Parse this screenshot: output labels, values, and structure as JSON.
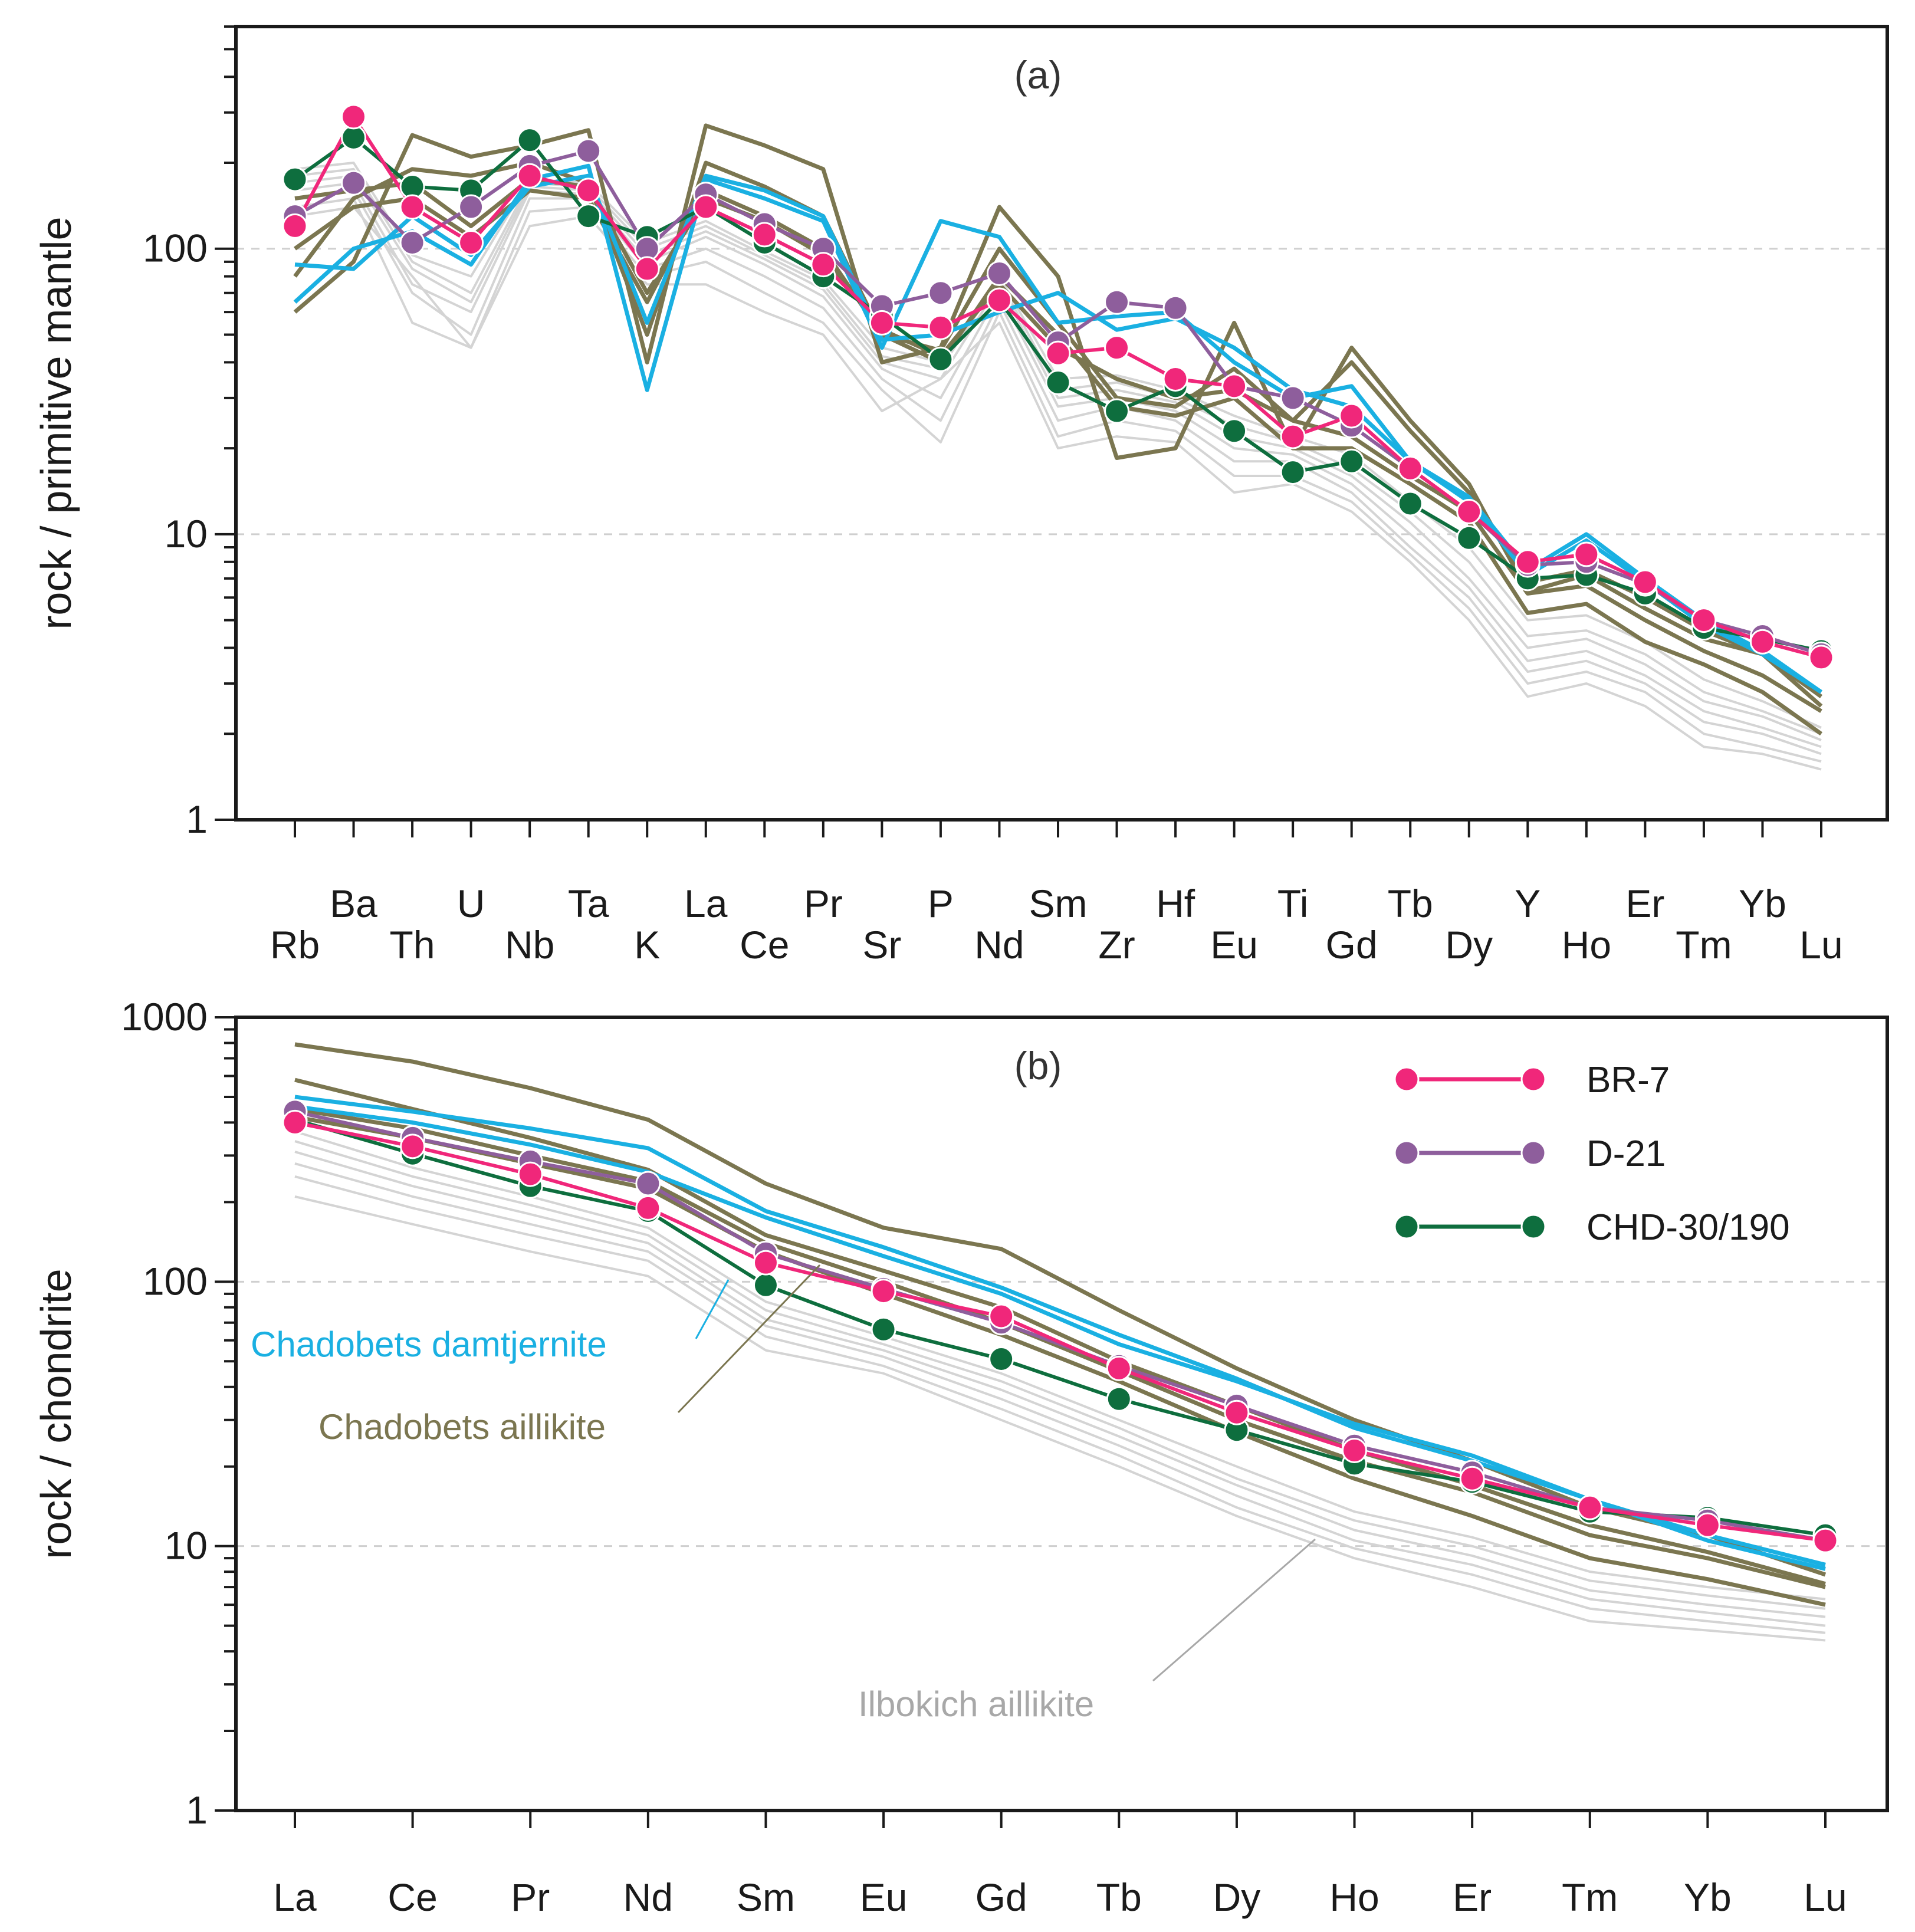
{
  "colors": {
    "br7": "#f0277a",
    "d21": "#8e5e9c",
    "chd": "#0e6e3e",
    "damtjernite": "#1ab0e2",
    "aillikite": "#7b7650",
    "ilbokich": "#d4d4d4",
    "grid": "#cfcfcf",
    "frame": "#1a1a1a"
  },
  "chart_data": [
    {
      "type": "line",
      "panel_label": "(a)",
      "ylabel": "rock / primitive mantle",
      "yscale": "log",
      "ylim": [
        1,
        600
      ],
      "yticks": [
        "1",
        "10",
        "100"
      ],
      "categories": [
        "Rb",
        "Ba",
        "Th",
        "U",
        "Nb",
        "Ta",
        "K",
        "La",
        "Ce",
        "Pr",
        "Sr",
        "P",
        "Nd",
        "Sm",
        "Zr",
        "Hf",
        "Eu",
        "Ti",
        "Gd",
        "Tb",
        "Dy",
        "Y",
        "Ho",
        "Er",
        "Tm",
        "Yb",
        "Lu"
      ],
      "series": [
        {
          "name": "BR-7",
          "group": "br7",
          "markers": true,
          "values": [
            120,
            290,
            140,
            105,
            180,
            160,
            85,
            140,
            112,
            88,
            55,
            53,
            66,
            43,
            45,
            35,
            33,
            22,
            26,
            17,
            12,
            8,
            8.5,
            6.8,
            5,
            4.2,
            3.7
          ]
        },
        {
          "name": "D-21",
          "group": "d21",
          "markers": true,
          "values": [
            130,
            170,
            105,
            140,
            195,
            220,
            100,
            155,
            122,
            100,
            63,
            70,
            82,
            47,
            65,
            62,
            33,
            30,
            24,
            17,
            12,
            7.8,
            8,
            6.7,
            5,
            4.4,
            3.8
          ]
        },
        {
          "name": "CHD-30/190",
          "group": "chd",
          "markers": true,
          "values": [
            175,
            245,
            165,
            160,
            240,
            130,
            110,
            140,
            105,
            80,
            58,
            41,
            66,
            34,
            27,
            33,
            23,
            16.5,
            18,
            12.8,
            9.7,
            7,
            7.2,
            6.2,
            4.7,
            4.3,
            3.9
          ]
        },
        {
          "name": "Chadobets damtjernite 1",
          "group": "damtjernite",
          "markers": false,
          "values": [
            65,
            100,
            115,
            88,
            175,
            195,
            32,
            175,
            150,
            125,
            45,
            125,
            110,
            55,
            58,
            60,
            40,
            30,
            33,
            18,
            13,
            7.2,
            9.5,
            6.8,
            4.8,
            3.8,
            2.8
          ]
        },
        {
          "name": "Chadobets damtjernite 2",
          "group": "damtjernite",
          "markers": false,
          "values": [
            88,
            85,
            130,
            95,
            165,
            180,
            55,
            180,
            160,
            130,
            48,
            50,
            60,
            70,
            52,
            57,
            45,
            32,
            28,
            18,
            13.5,
            7.5,
            10,
            7,
            5,
            3.9,
            2.8
          ]
        },
        {
          "name": "Chadobets aillikite 1",
          "group": "aillikite",
          "markers": false,
          "values": [
            60,
            90,
            250,
            210,
            230,
            260,
            40,
            270,
            230,
            190,
            40,
            45,
            140,
            80,
            18.5,
            20,
            55,
            20,
            45,
            25,
            15,
            6.3,
            7.2,
            5.5,
            4.3,
            3.8,
            2.7
          ]
        },
        {
          "name": "Chadobets aillikite 2",
          "group": "aillikite",
          "markers": false,
          "values": [
            80,
            150,
            190,
            180,
            200,
            170,
            50,
            200,
            165,
            130,
            50,
            44,
            100,
            55,
            30,
            28,
            38,
            25,
            40,
            23,
            14,
            6.8,
            7.5,
            6,
            4.6,
            3.8,
            2.5
          ]
        },
        {
          "name": "Chadobets aillikite 3",
          "group": "aillikite",
          "markers": false,
          "values": [
            100,
            140,
            150,
            110,
            160,
            150,
            65,
            160,
            130,
            100,
            50,
            40,
            80,
            50,
            28,
            26,
            30,
            20,
            20,
            15,
            11,
            5.3,
            5.7,
            4.2,
            3.5,
            2.8,
            2
          ]
        },
        {
          "name": "Chadobets aillikite 4",
          "group": "aillikite",
          "markers": false,
          "values": [
            150,
            160,
            170,
            120,
            175,
            165,
            70,
            150,
            125,
            95,
            52,
            42,
            75,
            45,
            35,
            30,
            32,
            25,
            22,
            16,
            12,
            6.2,
            6.6,
            5,
            3.9,
            3.2,
            2.4
          ]
        },
        {
          "name": "Ilbokich aillikite 1",
          "group": "ilbokich",
          "markers": false,
          "values": [
            130,
            140,
            80,
            45,
            120,
            130,
            75,
            75,
            60,
            50,
            27,
            35,
            55,
            20,
            22,
            21,
            14,
            15,
            12,
            8,
            5,
            2.7,
            3,
            2.5,
            1.8,
            1.7,
            1.5
          ]
        },
        {
          "name": "Ilbokich aillikite 2",
          "group": "ilbokich",
          "markers": false,
          "values": [
            140,
            150,
            55,
            45,
            135,
            140,
            80,
            90,
            70,
            55,
            32,
            21,
            60,
            22,
            25,
            23,
            16,
            16,
            13,
            8.5,
            5.5,
            3,
            3.3,
            2.8,
            2,
            1.8,
            1.6
          ]
        },
        {
          "name": "Ilbokich aillikite 3",
          "group": "ilbokich",
          "markers": false,
          "values": [
            150,
            160,
            70,
            50,
            150,
            150,
            85,
            100,
            80,
            62,
            35,
            25,
            65,
            25,
            28,
            25,
            18,
            18,
            14,
            9,
            6,
            3.3,
            3.6,
            3,
            2.2,
            2,
            1.7
          ]
        },
        {
          "name": "Ilbokich aillikite 4",
          "group": "ilbokich",
          "markers": false,
          "values": [
            160,
            170,
            75,
            60,
            160,
            155,
            90,
            110,
            88,
            68,
            38,
            30,
            70,
            28,
            30,
            27,
            20,
            19,
            15,
            10,
            6.5,
            3.6,
            3.9,
            3.2,
            2.4,
            2.1,
            1.8
          ]
        },
        {
          "name": "Ilbokich aillikite 5",
          "group": "ilbokich",
          "markers": false,
          "values": [
            170,
            180,
            85,
            65,
            165,
            160,
            95,
            115,
            92,
            72,
            40,
            35,
            75,
            30,
            32,
            29,
            22,
            20,
            16,
            11,
            7,
            4,
            4.3,
            3.5,
            2.6,
            2.3,
            1.9
          ]
        },
        {
          "name": "Ilbokich aillikite 6",
          "group": "ilbokich",
          "markers": false,
          "values": [
            180,
            190,
            90,
            70,
            170,
            165,
            100,
            120,
            95,
            75,
            42,
            38,
            78,
            32,
            34,
            30,
            24,
            21,
            17,
            12,
            8,
            4.4,
            4.6,
            3.8,
            2.8,
            2.4,
            2
          ]
        },
        {
          "name": "Ilbokich aillikite 7",
          "group": "ilbokich",
          "markers": false,
          "values": [
            190,
            200,
            95,
            80,
            175,
            170,
            105,
            125,
            98,
            78,
            45,
            40,
            80,
            35,
            36,
            32,
            26,
            22,
            19,
            13,
            9,
            5,
            5.2,
            4.2,
            3.1,
            2.6,
            2.1
          ]
        }
      ]
    },
    {
      "type": "line",
      "panel_label": "(b)",
      "ylabel": "rock / chondrite",
      "yscale": "log",
      "ylim": [
        1,
        1000
      ],
      "yticks": [
        "1",
        "10",
        "100",
        "1000"
      ],
      "categories": [
        "La",
        "Ce",
        "Pr",
        "Nd",
        "Sm",
        "Eu",
        "Gd",
        "Tb",
        "Dy",
        "Ho",
        "Er",
        "Tm",
        "Yb",
        "Lu"
      ],
      "legend": [
        {
          "name": "BR-7",
          "group": "br7"
        },
        {
          "name": "D-21",
          "group": "d21"
        },
        {
          "name": "CHD-30/190",
          "group": "chd"
        }
      ],
      "annotations": [
        {
          "text": "Chadobets damtjernite",
          "group": "damtjernite"
        },
        {
          "text": "Chadobets aillikite",
          "group": "aillikite"
        },
        {
          "text": "Ilbokich aillikite",
          "group": "ilbokich"
        }
      ],
      "series": [
        {
          "name": "BR-7",
          "group": "br7",
          "markers": true,
          "values": [
            400,
            325,
            255,
            190,
            118,
            92,
            74,
            47,
            32,
            23,
            18,
            14,
            12,
            10.5
          ]
        },
        {
          "name": "D-21",
          "group": "d21",
          "markers": true,
          "values": [
            440,
            350,
            285,
            235,
            128,
            94,
            70,
            48,
            34,
            24,
            19,
            14,
            12.5,
            10.5
          ]
        },
        {
          "name": "CHD-30/190",
          "group": "chd",
          "markers": true,
          "values": [
            410,
            305,
            230,
            185,
            97,
            66,
            51,
            36,
            27.5,
            20.5,
            17.5,
            13.5,
            12.8,
            11
          ]
        },
        {
          "name": "Chadobets damtjernite 1",
          "group": "damtjernite",
          "markers": false,
          "values": [
            500,
            440,
            380,
            320,
            185,
            135,
            95,
            63,
            43,
            28,
            21,
            15,
            11,
            8.5
          ]
        },
        {
          "name": "Chadobets damtjernite 2",
          "group": "damtjernite",
          "markers": false,
          "values": [
            460,
            400,
            330,
            260,
            175,
            125,
            90,
            58,
            42,
            29,
            22,
            15,
            10.5,
            8.2
          ]
        },
        {
          "name": "Chadobets aillikite 1",
          "group": "aillikite",
          "markers": false,
          "values": [
            790,
            680,
            540,
            410,
            235,
            160,
            133,
            78,
            47,
            30,
            21,
            14,
            11,
            7.8
          ]
        },
        {
          "name": "Chadobets aillikite 2",
          "group": "aillikite",
          "markers": false,
          "values": [
            580,
            450,
            350,
            265,
            150,
            110,
            80,
            50,
            34,
            23,
            17,
            12,
            9.5,
            7.2
          ]
        },
        {
          "name": "Chadobets aillikite 3",
          "group": "aillikite",
          "markers": false,
          "values": [
            450,
            380,
            300,
            240,
            140,
            100,
            70,
            46,
            30,
            21,
            16,
            11,
            9,
            7
          ]
        },
        {
          "name": "Chadobets aillikite 4",
          "group": "aillikite",
          "markers": false,
          "values": [
            420,
            350,
            280,
            225,
            130,
            90,
            63,
            42,
            27,
            18,
            13,
            9,
            7.5,
            6
          ]
        },
        {
          "name": "Ilbokich aillikite 1",
          "group": "ilbokich",
          "markers": false,
          "values": [
            210,
            165,
            130,
            105,
            55,
            45,
            30,
            20,
            13,
            9,
            7,
            5.2,
            4.8,
            4.4
          ]
        },
        {
          "name": "Ilbokich aillikite 2",
          "group": "ilbokich",
          "markers": false,
          "values": [
            250,
            190,
            150,
            120,
            62,
            48,
            33,
            22,
            14,
            9.8,
            7.8,
            5.8,
            5.2,
            4.7
          ]
        },
        {
          "name": "Ilbokich aillikite 3",
          "group": "ilbokich",
          "markers": false,
          "values": [
            280,
            210,
            165,
            130,
            68,
            52,
            36,
            24,
            15.5,
            10.5,
            8.5,
            6.3,
            5.6,
            5
          ]
        },
        {
          "name": "Ilbokich aillikite 4",
          "group": "ilbokich",
          "markers": false,
          "values": [
            310,
            230,
            180,
            140,
            72,
            55,
            39,
            26,
            17,
            11.5,
            9.2,
            6.8,
            6,
            5.4
          ]
        },
        {
          "name": "Ilbokich aillikite 5",
          "group": "ilbokich",
          "markers": false,
          "values": [
            340,
            250,
            195,
            150,
            78,
            58,
            42,
            28,
            18,
            12.5,
            10,
            7.4,
            6.5,
            5.8
          ]
        },
        {
          "name": "Ilbokich aillikite 6",
          "group": "ilbokich",
          "markers": false,
          "values": [
            370,
            270,
            210,
            160,
            84,
            62,
            45,
            30,
            20,
            13.5,
            10.8,
            8,
            7,
            6.3
          ]
        }
      ]
    }
  ]
}
